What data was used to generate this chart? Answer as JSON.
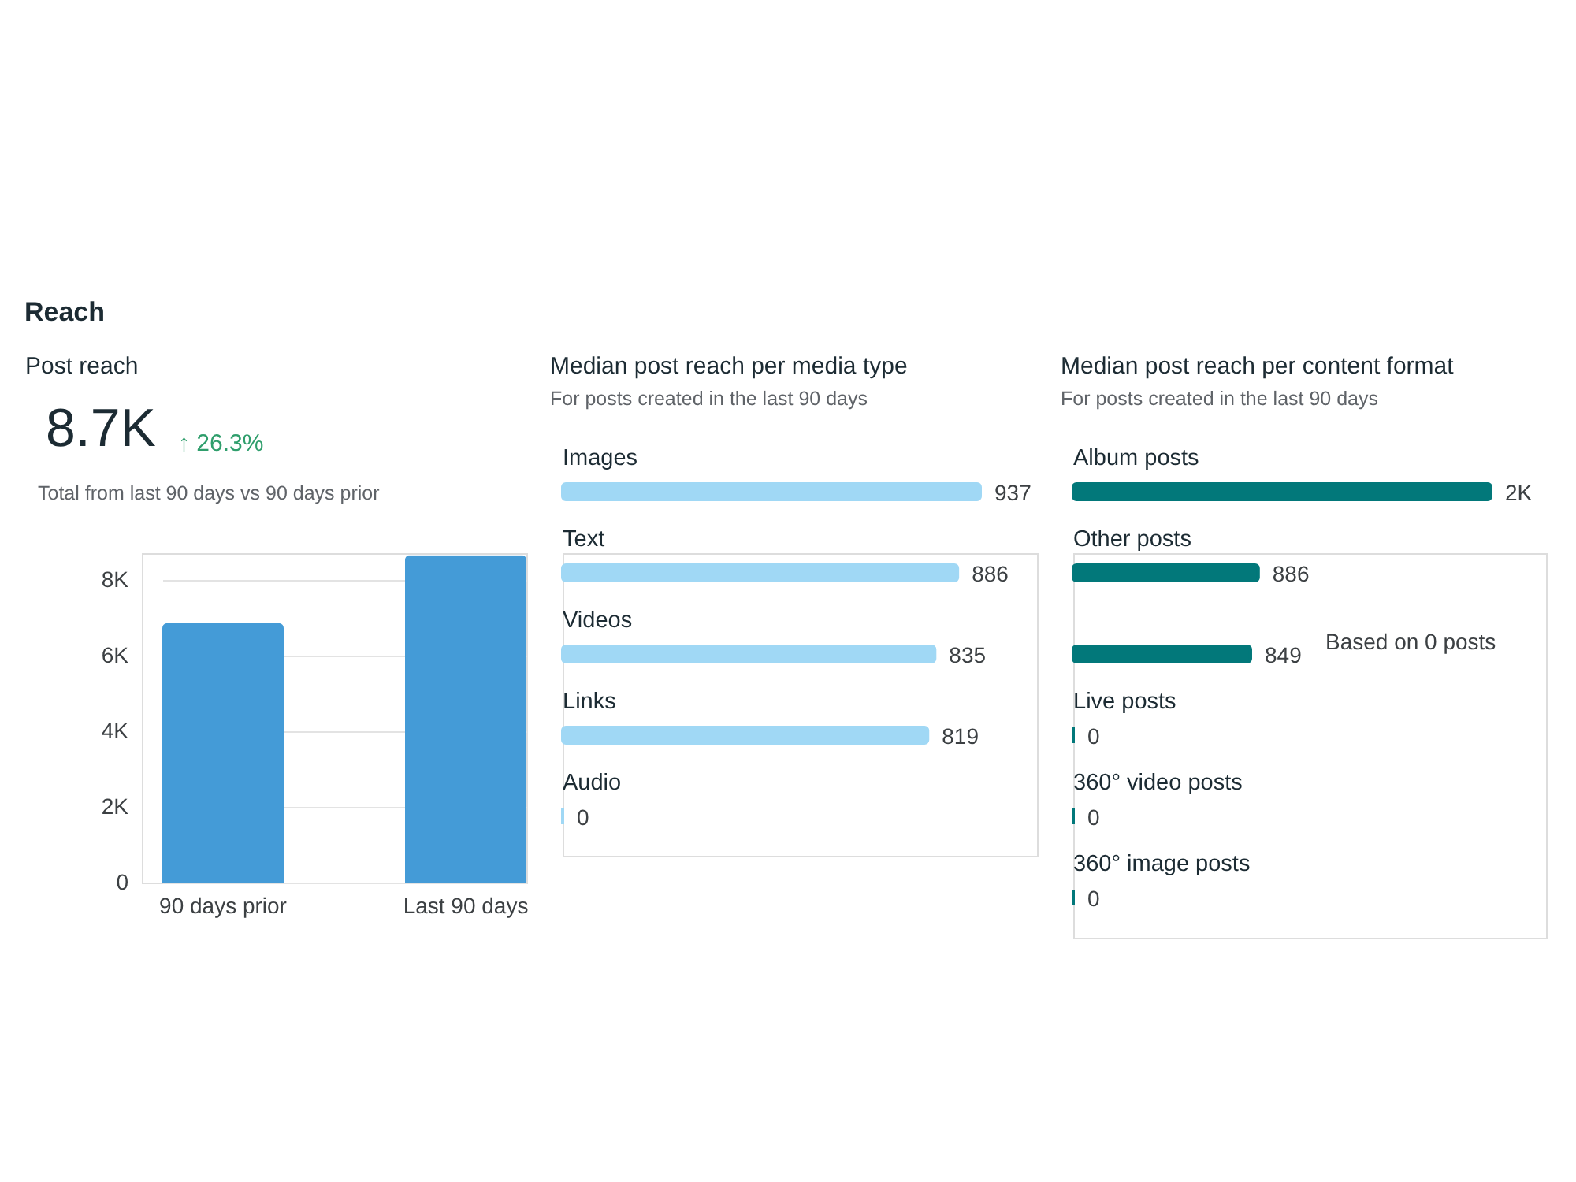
{
  "chart_data": [
    {
      "type": "other",
      "title": "Reach"
    },
    {
      "type": "bar",
      "title": "Post reach",
      "subtitle": "Total from last 90 days vs 90 days prior",
      "annotations": [
        "8.7K",
        "↑ 26.3%"
      ],
      "categories": [
        "90 days prior",
        "Last 90 days"
      ],
      "values": [
        6850,
        8650
      ],
      "color": "#449bd7",
      "ylim": [
        0,
        8700
      ],
      "yticks": [
        0,
        {
          "value": 2000,
          "label": "2K"
        },
        {
          "value": 4000,
          "label": "4K"
        },
        {
          "value": 6000,
          "label": "6K"
        },
        {
          "value": 8000,
          "label": "8K"
        }
      ],
      "grid": "y"
    },
    {
      "type": "bar",
      "orientation": "horizontal",
      "title": "Median post reach per media type",
      "subtitle": "For posts created in the last 90 days",
      "categories": [
        "Images",
        "Text",
        "Videos",
        "Links",
        "Audio"
      ],
      "values": [
        937,
        886,
        835,
        819,
        0
      ],
      "color": "#a0d8f5",
      "data_labels": true
    },
    {
      "type": "bar",
      "orientation": "horizontal",
      "title": "Median post reach per content format",
      "subtitle": "For posts created in the last 90 days",
      "categories": [
        "Album posts",
        "Other posts",
        null,
        "Live posts",
        "360° video posts",
        "360° image posts"
      ],
      "values": [
        2000,
        886,
        849,
        0,
        0,
        0
      ],
      "value_labels": [
        "2K",
        "886",
        "849",
        "0",
        "0",
        "0"
      ],
      "color": "#02787a",
      "annotations": [
        "Based on 0 posts"
      ]
    }
  ]
}
